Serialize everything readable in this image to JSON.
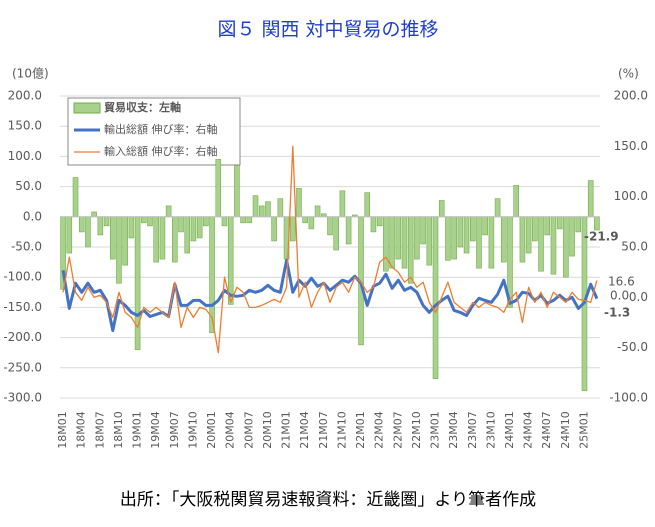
{
  "chart_data": {
    "type": "bar",
    "title": "図５ 関西 対中貿易の推移",
    "y_unit": "(10億)",
    "y2_unit": "(%)",
    "source": "出所：「大阪税関貿易速報資料：近畿圏」より筆者作成",
    "annotations": [
      "0.0"
    ],
    "categories": [
      "18M01",
      null,
      null,
      "18M04",
      null,
      null,
      "18M07",
      null,
      null,
      "18M10",
      null,
      null,
      "19M01",
      null,
      null,
      "19M04",
      null,
      null,
      "19M07",
      null,
      null,
      "19M10",
      null,
      null,
      "20M01",
      null,
      null,
      "20M04",
      null,
      null,
      "20M07",
      null,
      null,
      "20M10",
      null,
      null,
      "21M01",
      null,
      null,
      "21M04",
      null,
      null,
      "21M07",
      null,
      null,
      "21M10",
      null,
      null,
      "22M01",
      null,
      null,
      "22M04",
      null,
      null,
      "22M07",
      null,
      null,
      "22M10",
      null,
      null,
      "23M01",
      null,
      null,
      "23M04",
      null,
      null,
      "23M07",
      null,
      null,
      "23M10",
      null,
      null,
      "24M01",
      null,
      null,
      "24M04",
      null,
      null,
      "24M07",
      null,
      null,
      "24M10",
      null,
      null,
      "25M01",
      null,
      null
    ],
    "series": [
      {
        "name": "貿易収支：左軸",
        "type": "bar",
        "color": "#a9d18e",
        "edge": "#70ad47",
        "values": [
          -120,
          -60,
          65,
          -25,
          -50,
          8,
          -30,
          -15,
          -70,
          -110,
          -80,
          -35,
          -220,
          -10,
          -15,
          -75,
          -70,
          18,
          -75,
          -25,
          -60,
          -40,
          -35,
          -15,
          -192,
          95,
          -15,
          -145,
          85,
          -10,
          -10,
          35,
          18,
          25,
          -40,
          30,
          -70,
          -40,
          47,
          -10,
          -20,
          18,
          5,
          -30,
          -55,
          43,
          -45,
          3,
          -212,
          40,
          -25,
          -15,
          -90,
          -85,
          -70,
          -85,
          -110,
          -70,
          -45,
          -80,
          -268,
          27,
          -72,
          -70,
          -50,
          -60,
          -40,
          -85,
          -30,
          -85,
          30,
          -75,
          -150,
          52,
          -75,
          -60,
          -40,
          -90,
          -30,
          -95,
          -20,
          -100,
          -65,
          -25,
          -288,
          60,
          -21.9
        ]
      },
      {
        "name": "輸出総額 伸び率：右軸",
        "type": "line",
        "axis": "y2",
        "color": "#4472c4",
        "width": 3,
        "values": [
          27,
          -11,
          14,
          5,
          14,
          5,
          7,
          -3,
          -33,
          -3,
          -8,
          -15,
          -18,
          -13,
          -19,
          -17,
          -15,
          -19,
          13,
          -8,
          -8,
          -3,
          -3,
          -8,
          -8,
          -3,
          7,
          2,
          1,
          2,
          7,
          5,
          7,
          12,
          7,
          5,
          37,
          5,
          17,
          11,
          19,
          11,
          14,
          7,
          12,
          17,
          15,
          21,
          14,
          -8,
          11,
          14,
          23,
          9,
          17,
          7,
          10,
          5,
          -8,
          -15,
          -8,
          -3,
          1,
          -13,
          -15,
          -18,
          -8,
          -1,
          -3,
          -5,
          3,
          17,
          -6,
          -3,
          5,
          4,
          -3,
          2,
          -6,
          -3,
          2,
          -3,
          0,
          -11,
          -5,
          13,
          -1.3
        ]
      },
      {
        "name": "輸入総額 伸び率：右軸",
        "type": "line",
        "axis": "y2",
        "color": "#ed7d31",
        "width": 1.3,
        "values": [
          5,
          40,
          5,
          -3,
          10,
          0,
          2,
          -5,
          -20,
          5,
          -15,
          -20,
          -30,
          -10,
          -15,
          -10,
          -15,
          -20,
          15,
          -30,
          -10,
          -20,
          -10,
          -12,
          -20,
          -55,
          20,
          -5,
          10,
          5,
          -10,
          -10,
          -8,
          -5,
          -2,
          -5,
          10,
          150,
          0,
          15,
          -10,
          5,
          15,
          -5,
          10,
          15,
          5,
          20,
          15,
          5,
          10,
          35,
          40,
          30,
          25,
          15,
          20,
          10,
          15,
          -5,
          -15,
          0,
          15,
          -5,
          -10,
          -15,
          -5,
          -10,
          -5,
          -8,
          -10,
          -15,
          -2,
          5,
          -25,
          10,
          -5,
          5,
          -10,
          5,
          0,
          -5,
          5,
          -2,
          -3,
          -5,
          16.6
        ]
      }
    ],
    "ylim": [
      -300,
      200
    ],
    "yticks": [
      {
        "value": 200,
        "label": "200.0"
      },
      {
        "value": 150,
        "label": "150.0"
      },
      {
        "value": 100,
        "label": "100.0"
      },
      {
        "value": 50,
        "label": "50.0"
      },
      {
        "value": 0,
        "label": "0.0"
      },
      {
        "value": -50,
        "label": "-50.0"
      },
      {
        "value": -100,
        "label": "-100.0"
      },
      {
        "value": -150,
        "label": "-150.0"
      },
      {
        "value": -200,
        "label": "-200.0"
      },
      {
        "value": -250,
        "label": "-250.0"
      },
      {
        "value": -300,
        "label": "-300.0"
      }
    ],
    "y2lim": [
      -100,
      200
    ],
    "y2ticks": [
      {
        "value": 200,
        "label": "200.0"
      },
      {
        "value": 150,
        "label": "150.0"
      },
      {
        "value": 100,
        "label": "100.0"
      },
      {
        "value": 50,
        "label": "50.0"
      },
      {
        "value": 0,
        "label": "0.0"
      },
      {
        "value": -50,
        "label": "-50.0"
      },
      {
        "value": -100,
        "label": "-100.0"
      }
    ],
    "grid": true
  }
}
